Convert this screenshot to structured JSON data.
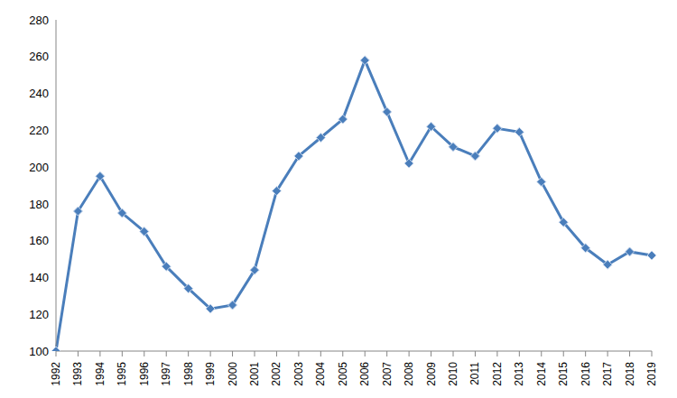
{
  "chart_data": {
    "type": "line",
    "categories": [
      "1992",
      "1993",
      "1994",
      "1995",
      "1996",
      "1997",
      "1998",
      "1999",
      "2000",
      "2001",
      "2002",
      "2003",
      "2004",
      "2005",
      "2006",
      "2007",
      "2008",
      "2009",
      "2010",
      "2011",
      "2012",
      "2013",
      "2014",
      "2015",
      "2016",
      "2017",
      "2018",
      "2019"
    ],
    "values": [
      100,
      176,
      195,
      175,
      165,
      146,
      134,
      123,
      125,
      144,
      187,
      206,
      216,
      226,
      258,
      230,
      202,
      222,
      211,
      206,
      221,
      219,
      192,
      170,
      156,
      147,
      154,
      152
    ],
    "color": "#4a7ebb",
    "marker": "diamond",
    "ylim": [
      100,
      280
    ],
    "yticks": [
      100,
      120,
      140,
      160,
      180,
      200,
      220,
      240,
      260,
      280
    ],
    "grid": false
  }
}
